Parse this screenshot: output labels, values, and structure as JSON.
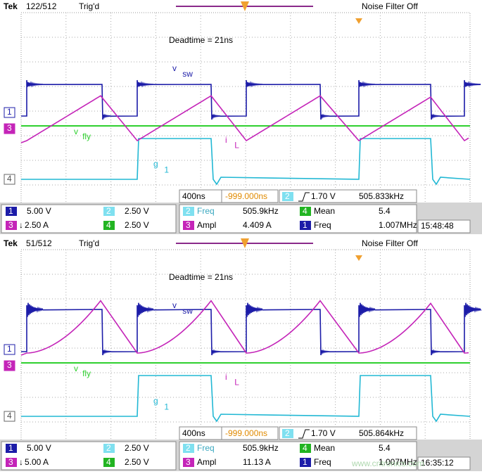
{
  "panels": [
    {
      "header": {
        "brand": "Tek",
        "record": "122/512",
        "status": "Trig'd",
        "filter": "Noise Filter Off"
      },
      "annotation": "Deadtime = 21ns",
      "labels": {
        "vsw": {
          "main": "v",
          "sub": "sw"
        },
        "vfly": {
          "main": "v",
          "sub": "fly"
        },
        "il": {
          "main": "i",
          "sub": "L"
        },
        "g1": {
          "main": "g",
          "sub": "1"
        }
      },
      "channel_markers": [
        "1",
        "3",
        "4"
      ],
      "readouts": {
        "timebase": "400ns",
        "trigger_position": "-999.000ns",
        "trigger_channel": "2",
        "trigger_level": "1.70 V",
        "trigger_frequency": "505.833kHz",
        "channels": [
          {
            "id": "1",
            "scale": "5.00 V"
          },
          {
            "id": "2",
            "scale": "2.50 V"
          },
          {
            "id": "3",
            "scale": "2.50 A"
          },
          {
            "id": "4",
            "scale": "2.50 V"
          }
        ],
        "measurements": [
          {
            "channel": "2",
            "name": "Freq",
            "value": "505.9kHz"
          },
          {
            "channel": "4",
            "name": "Mean",
            "value": "5.4"
          },
          {
            "channel": "3",
            "name": "Ampl",
            "value": "4.409 A"
          },
          {
            "channel": "1",
            "name": "Freq",
            "value": "1.007MHz"
          }
        ]
      },
      "time": "15:48:48"
    },
    {
      "header": {
        "brand": "Tek",
        "record": "51/512",
        "status": "Trig'd",
        "filter": "Noise Filter Off"
      },
      "annotation": "Deadtime = 21ns",
      "labels": {
        "vsw": {
          "main": "v",
          "sub": "sw"
        },
        "vfly": {
          "main": "v",
          "sub": "fly"
        },
        "il": {
          "main": "i",
          "sub": "L"
        },
        "g1": {
          "main": "g",
          "sub": "1"
        }
      },
      "channel_markers": [
        "1",
        "3",
        "4"
      ],
      "readouts": {
        "timebase": "400ns",
        "trigger_position": "-999.000ns",
        "trigger_channel": "2",
        "trigger_level": "1.70 V",
        "trigger_frequency": "505.864kHz",
        "channels": [
          {
            "id": "1",
            "scale": "5.00 V"
          },
          {
            "id": "2",
            "scale": "2.50 V"
          },
          {
            "id": "3",
            "scale": "5.00 A"
          },
          {
            "id": "4",
            "scale": "2.50 V"
          }
        ],
        "measurements": [
          {
            "channel": "2",
            "name": "Freq",
            "value": "505.9kHz"
          },
          {
            "channel": "4",
            "name": "Mean",
            "value": "5.4"
          },
          {
            "channel": "3",
            "name": "Ampl",
            "value": "11.13 A"
          },
          {
            "channel": "1",
            "name": "Freq",
            "value": "1.007MHz"
          }
        ]
      },
      "time": "16:35:12"
    }
  ],
  "watermark": "www.cntronics.com"
}
